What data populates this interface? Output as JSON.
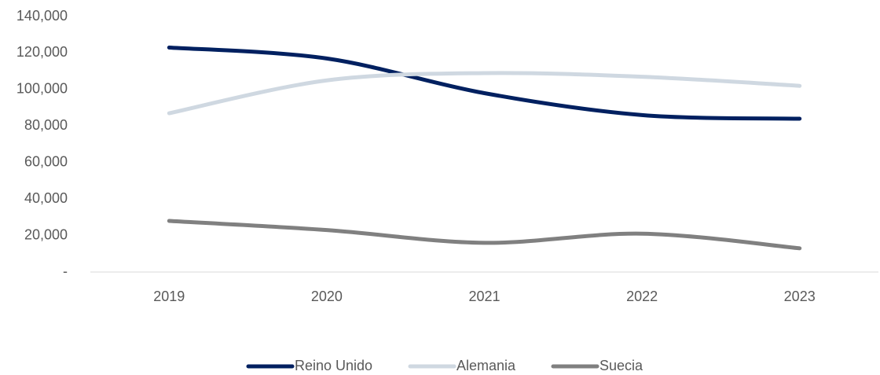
{
  "chart_data": {
    "type": "line",
    "categories": [
      "2019",
      "2020",
      "2021",
      "2022",
      "2023"
    ],
    "series": [
      {
        "name": "Reino Unido",
        "color": "#002060",
        "values": [
          123000,
          117000,
          98000,
          86000,
          84000
        ]
      },
      {
        "name": "Alemania",
        "color": "#cfd8e1",
        "values": [
          87000,
          105000,
          109000,
          107000,
          102000
        ]
      },
      {
        "name": "Suecia",
        "color": "#808080",
        "values": [
          28000,
          23000,
          16000,
          21000,
          13000
        ]
      }
    ],
    "ylim": [
      0,
      140000
    ],
    "yticks": [
      {
        "value": 0,
        "label": "-"
      },
      {
        "value": 20000,
        "label": "20,000"
      },
      {
        "value": 40000,
        "label": "40,000"
      },
      {
        "value": 60000,
        "label": "60,000"
      },
      {
        "value": 80000,
        "label": "80,000"
      },
      {
        "value": 100000,
        "label": "100,000"
      },
      {
        "value": 120000,
        "label": "120,000"
      },
      {
        "value": 140000,
        "label": "140,000"
      }
    ],
    "grid": false,
    "smooth": true,
    "legend": "bottom"
  }
}
